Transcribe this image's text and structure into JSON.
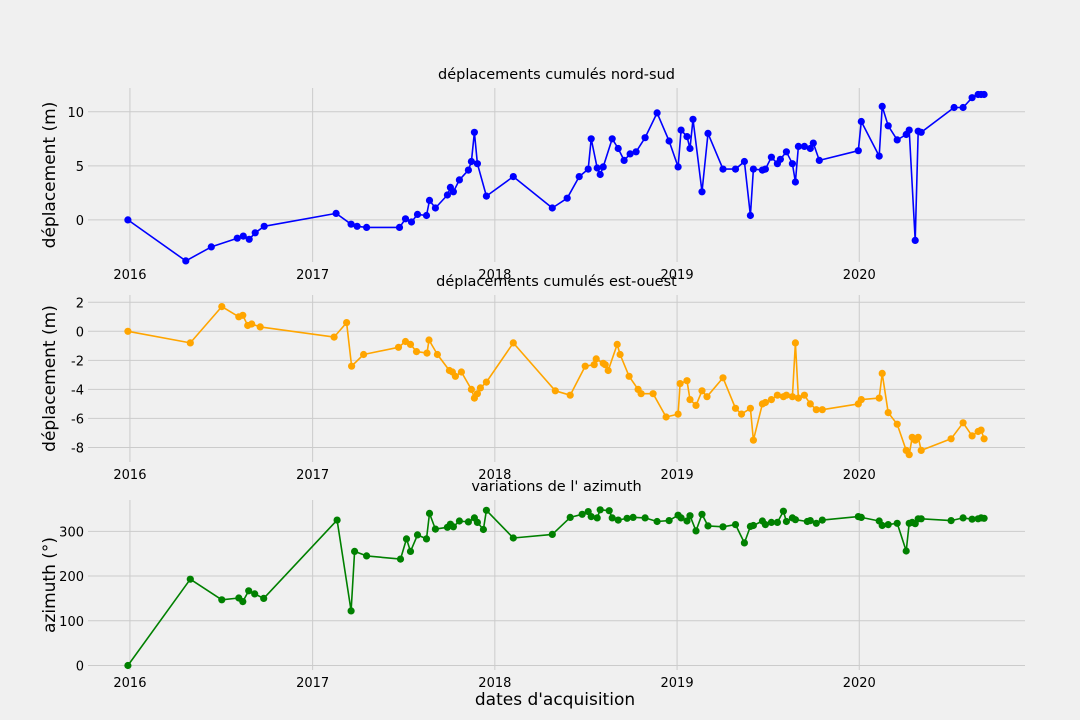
{
  "figure": {
    "xlabel": "dates d'acquisition"
  },
  "chart_data": [
    {
      "type": "line",
      "title": "déplacements cumulés nord-sud",
      "xlabel": "",
      "ylabel": "déplacement (m)",
      "color": "#0000ff",
      "xlim": [
        "2015-10-09",
        "2020-11-28"
      ],
      "ylim": [
        -3.9,
        12.2
      ],
      "xticks": [
        "2016",
        "2017",
        "2018",
        "2019",
        "2020"
      ],
      "yticks": [
        0,
        5,
        10
      ],
      "grid": true,
      "x": [
        "2015-12-28",
        "2016-04-22",
        "2016-06-12",
        "2016-08-03",
        "2016-08-15",
        "2016-08-27",
        "2016-09-08",
        "2016-09-26",
        "2017-02-17",
        "2017-03-19",
        "2017-03-31",
        "2017-04-19",
        "2017-06-24",
        "2017-07-06",
        "2017-07-18",
        "2017-07-30",
        "2017-08-17",
        "2017-08-23",
        "2017-09-04",
        "2017-09-28",
        "2017-10-04",
        "2017-10-10",
        "2017-10-22",
        "2017-11-09",
        "2017-11-15",
        "2017-11-21",
        "2017-11-27",
        "2017-12-15",
        "2018-02-07",
        "2018-04-26",
        "2018-05-26",
        "2018-06-19",
        "2018-07-07",
        "2018-07-13",
        "2018-07-25",
        "2018-07-31",
        "2018-08-06",
        "2018-08-24",
        "2018-09-05",
        "2018-09-17",
        "2018-09-29",
        "2018-10-11",
        "2018-10-29",
        "2018-11-22",
        "2018-12-16",
        "2019-01-03",
        "2019-01-09",
        "2019-01-21",
        "2019-01-27",
        "2019-02-02",
        "2019-02-20",
        "2019-03-04",
        "2019-04-03",
        "2019-04-28",
        "2019-05-16",
        "2019-05-28",
        "2019-06-03",
        "2019-06-21",
        "2019-06-27",
        "2019-07-09",
        "2019-07-21",
        "2019-07-27",
        "2019-08-08",
        "2019-08-20",
        "2019-08-26",
        "2019-09-01",
        "2019-09-13",
        "2019-09-25",
        "2019-10-01",
        "2019-10-13",
        "2019-12-30",
        "2020-01-05",
        "2020-02-10",
        "2020-02-16",
        "2020-02-28",
        "2020-03-17",
        "2020-04-04",
        "2020-04-10",
        "2020-04-22",
        "2020-04-28",
        "2020-05-04",
        "2020-07-09",
        "2020-07-27",
        "2020-08-14",
        "2020-08-26",
        "2020-09-01",
        "2020-09-07"
      ],
      "y": [
        0.0,
        -3.8,
        -2.5,
        -1.7,
        -1.5,
        -1.8,
        -1.2,
        -0.6,
        0.6,
        -0.4,
        -0.6,
        -0.7,
        -0.7,
        0.1,
        -0.2,
        0.5,
        0.4,
        1.8,
        1.1,
        2.3,
        3.0,
        2.6,
        3.7,
        4.6,
        5.4,
        8.1,
        5.2,
        2.2,
        4.0,
        1.1,
        2.0,
        4.0,
        4.7,
        7.5,
        4.8,
        4.2,
        4.9,
        7.5,
        6.6,
        5.5,
        6.1,
        6.3,
        7.6,
        9.9,
        7.3,
        4.9,
        8.3,
        7.7,
        6.6,
        9.3,
        2.6,
        8.0,
        4.7,
        4.7,
        5.4,
        0.4,
        4.7,
        4.6,
        4.7,
        5.8,
        5.2,
        5.6,
        6.3,
        5.2,
        3.5,
        6.8,
        6.8,
        6.6,
        7.1,
        5.5,
        6.4,
        9.1,
        5.9,
        10.5,
        8.7,
        7.4,
        7.9,
        8.3,
        -1.9,
        8.2,
        8.1,
        10.4,
        10.4,
        11.3,
        11.6,
        11.6,
        11.6
      ]
    },
    {
      "type": "line",
      "title": "déplacements cumulés est-ouest",
      "xlabel": "",
      "ylabel": "déplacement (m)",
      "color": "#ffa500",
      "xlim": [
        "2015-10-09",
        "2020-11-28"
      ],
      "ylim": [
        -9.0,
        2.5
      ],
      "xticks": [
        "2016",
        "2017",
        "2018",
        "2019",
        "2020"
      ],
      "yticks": [
        -8,
        -6,
        -4,
        -2,
        0,
        2
      ],
      "grid": true,
      "x": [
        "2015-12-28",
        "2016-05-01",
        "2016-07-03",
        "2016-08-06",
        "2016-08-14",
        "2016-08-24",
        "2016-09-01",
        "2016-09-18",
        "2017-02-13",
        "2017-03-10",
        "2017-03-20",
        "2017-04-13",
        "2017-06-22",
        "2017-07-06",
        "2017-07-16",
        "2017-07-28",
        "2017-08-18",
        "2017-08-22",
        "2017-09-08",
        "2017-10-02",
        "2017-10-08",
        "2017-10-14",
        "2017-10-26",
        "2017-11-15",
        "2017-11-21",
        "2017-11-27",
        "2017-12-03",
        "2017-12-15",
        "2018-02-07",
        "2018-05-02",
        "2018-06-01",
        "2018-07-01",
        "2018-07-19",
        "2018-07-23",
        "2018-08-06",
        "2018-08-10",
        "2018-08-16",
        "2018-09-03",
        "2018-09-09",
        "2018-09-27",
        "2018-10-15",
        "2018-10-21",
        "2018-11-14",
        "2018-12-10",
        "2019-01-03",
        "2019-01-07",
        "2019-01-21",
        "2019-01-27",
        "2019-02-08",
        "2019-02-20",
        "2019-03-02",
        "2019-04-03",
        "2019-04-28",
        "2019-05-10",
        "2019-05-28",
        "2019-06-03",
        "2019-06-21",
        "2019-06-27",
        "2019-07-09",
        "2019-07-21",
        "2019-08-02",
        "2019-08-08",
        "2019-08-20",
        "2019-08-26",
        "2019-09-01",
        "2019-09-13",
        "2019-09-25",
        "2019-10-07",
        "2019-10-19",
        "2019-12-30",
        "2020-01-05",
        "2020-02-10",
        "2020-02-16",
        "2020-02-28",
        "2020-03-17",
        "2020-04-04",
        "2020-04-10",
        "2020-04-16",
        "2020-04-22",
        "2020-04-28",
        "2020-05-04",
        "2020-07-03",
        "2020-07-27",
        "2020-08-14",
        "2020-08-26",
        "2020-09-01",
        "2020-09-07"
      ],
      "y": [
        0.0,
        -0.8,
        1.7,
        1.0,
        1.1,
        0.4,
        0.5,
        0.3,
        -0.4,
        0.6,
        -2.4,
        -1.6,
        -1.1,
        -0.7,
        -0.9,
        -1.4,
        -1.5,
        -0.6,
        -1.6,
        -2.7,
        -2.8,
        -3.1,
        -2.8,
        -4.0,
        -4.6,
        -4.3,
        -3.9,
        -3.5,
        -0.8,
        -4.1,
        -4.4,
        -2.4,
        -2.3,
        -1.9,
        -2.2,
        -2.3,
        -2.7,
        -0.9,
        -1.6,
        -3.1,
        -4.0,
        -4.3,
        -4.3,
        -5.9,
        -5.7,
        -3.6,
        -3.4,
        -4.7,
        -5.1,
        -4.1,
        -4.5,
        -3.2,
        -5.3,
        -5.7,
        -5.3,
        -7.5,
        -5.0,
        -4.9,
        -4.7,
        -4.4,
        -4.5,
        -4.4,
        -4.5,
        -0.8,
        -4.6,
        -4.4,
        -5.0,
        -5.4,
        -5.4,
        -5.0,
        -4.7,
        -4.6,
        -2.9,
        -5.6,
        -6.4,
        -8.2,
        -8.5,
        -7.3,
        -7.5,
        -7.3,
        -8.2,
        -7.4,
        -6.3,
        -7.2,
        -6.9,
        -6.8,
        -7.4
      ]
    },
    {
      "type": "line",
      "title": "variations de l' azimuth",
      "xlabel": "dates d'acquisition",
      "ylabel": "azimuth (°)",
      "color": "#008000",
      "xlim": [
        "2015-10-09",
        "2020-11-28"
      ],
      "ylim": [
        -10,
        370
      ],
      "xticks": [
        "2016",
        "2017",
        "2018",
        "2019",
        "2020"
      ],
      "yticks": [
        0,
        100,
        200,
        300
      ],
      "grid": true,
      "x": [
        "2015-12-28",
        "2016-05-01",
        "2016-07-03",
        "2016-08-06",
        "2016-08-14",
        "2016-08-26",
        "2016-09-07",
        "2016-09-25",
        "2017-02-19",
        "2017-03-19",
        "2017-03-26",
        "2017-04-19",
        "2017-06-26",
        "2017-07-08",
        "2017-07-16",
        "2017-07-30",
        "2017-08-17",
        "2017-08-23",
        "2017-09-04",
        "2017-09-28",
        "2017-10-04",
        "2017-10-10",
        "2017-10-22",
        "2017-11-09",
        "2017-11-21",
        "2017-11-27",
        "2017-12-09",
        "2017-12-15",
        "2018-02-07",
        "2018-04-26",
        "2018-06-01",
        "2018-06-25",
        "2018-07-07",
        "2018-07-13",
        "2018-07-25",
        "2018-07-31",
        "2018-08-18",
        "2018-08-24",
        "2018-09-05",
        "2018-09-23",
        "2018-10-05",
        "2018-10-29",
        "2018-11-22",
        "2018-12-16",
        "2019-01-03",
        "2019-01-09",
        "2019-01-21",
        "2019-01-27",
        "2019-02-08",
        "2019-02-20",
        "2019-03-04",
        "2019-04-03",
        "2019-04-28",
        "2019-05-16",
        "2019-05-28",
        "2019-06-03",
        "2019-06-21",
        "2019-06-27",
        "2019-07-09",
        "2019-07-21",
        "2019-08-02",
        "2019-08-08",
        "2019-08-20",
        "2019-08-26",
        "2019-09-19",
        "2019-09-25",
        "2019-10-07",
        "2019-10-19",
        "2019-12-30",
        "2020-01-05",
        "2020-02-10",
        "2020-02-16",
        "2020-02-28",
        "2020-03-17",
        "2020-04-04",
        "2020-04-10",
        "2020-04-16",
        "2020-04-22",
        "2020-04-28",
        "2020-05-04",
        "2020-07-03",
        "2020-07-27",
        "2020-08-14",
        "2020-08-26",
        "2020-09-01",
        "2020-09-07"
      ],
      "y": [
        0,
        193,
        147,
        151,
        143,
        167,
        160,
        150,
        325,
        122,
        255,
        245,
        238,
        283,
        255,
        292,
        283,
        340,
        305,
        309,
        316,
        310,
        323,
        321,
        330,
        320,
        304,
        347,
        285,
        293,
        331,
        338,
        344,
        333,
        330,
        348,
        346,
        330,
        325,
        329,
        331,
        330,
        322,
        324,
        336,
        330,
        323,
        335,
        301,
        338,
        312,
        310,
        315,
        274,
        311,
        313,
        323,
        315,
        320,
        320,
        345,
        322,
        330,
        326,
        322,
        324,
        318,
        325,
        333,
        331,
        323,
        313,
        315,
        318,
        256,
        318,
        320,
        317,
        328,
        328,
        324,
        330,
        327,
        328,
        330,
        329
      ]
    }
  ]
}
